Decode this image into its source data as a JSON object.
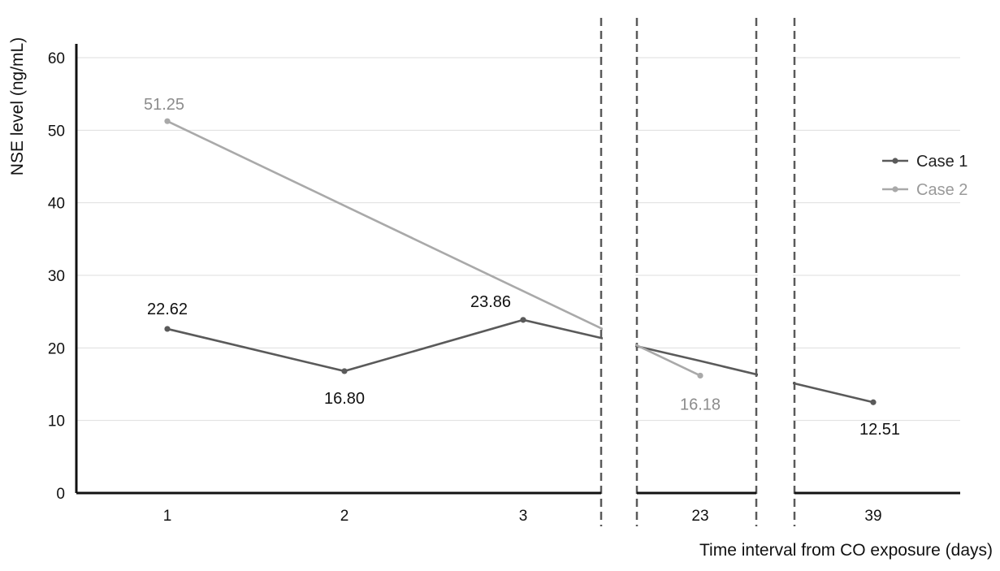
{
  "chart_data": {
    "type": "line",
    "title": "",
    "xlabel": "Time interval from CO exposure (days)",
    "ylabel": "NSE level (ng/mL)",
    "ylim": [
      0,
      60
    ],
    "yticks": [
      "0",
      "10",
      "20",
      "30",
      "40",
      "50",
      "60"
    ],
    "categories": [
      "1",
      "2",
      "3",
      "23",
      "39"
    ],
    "axis_breaks": [
      {
        "between": [
          "3",
          "23"
        ],
        "marker": "..."
      },
      {
        "between": [
          "23",
          "39"
        ],
        "marker": "..."
      }
    ],
    "grid": true,
    "legend_position": "right",
    "series": [
      {
        "name": "Case 1",
        "color": "#5a5a5a",
        "points": [
          {
            "x": "1",
            "y": 22.62,
            "label": "22.62"
          },
          {
            "x": "2",
            "y": 16.8,
            "label": "16.80"
          },
          {
            "x": "3",
            "y": 23.86,
            "label": "23.86"
          },
          {
            "x": "23",
            "y": 18.2,
            "label": ""
          },
          {
            "x": "39",
            "y": 12.51,
            "label": "12.51"
          }
        ]
      },
      {
        "name": "Case 2",
        "color": "#a9a9a9",
        "points": [
          {
            "x": "1",
            "y": 51.25,
            "label": "51.25"
          },
          {
            "x": "23",
            "y": 16.18,
            "label": "16.18"
          }
        ]
      }
    ]
  }
}
